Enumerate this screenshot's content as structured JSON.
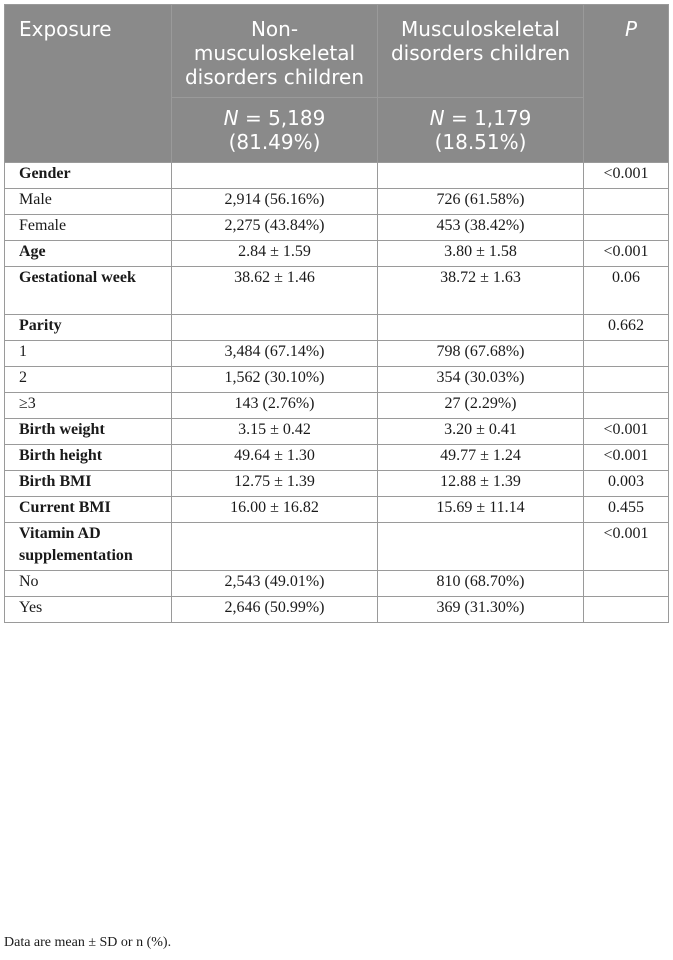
{
  "header": {
    "exposure": "Exposure",
    "group1": "Non-musculoskeletal disorders children",
    "group2": "Musculoskeletal disorders children",
    "p": "P",
    "n1_symbol": "N",
    "n1_value": " = 5,189",
    "n1_pct": "(81.49%)",
    "n2_symbol": "N",
    "n2_value": " = 1,179",
    "n2_pct": "(18.51%)"
  },
  "rows": [
    {
      "label": "Gender",
      "g1": "",
      "g2": "",
      "p": "<0.001"
    },
    {
      "label": "Male",
      "g1": "2,914 (56.16%)",
      "g2": "726 (61.58%)",
      "p": ""
    },
    {
      "label": "Female",
      "g1": "2,275 (43.84%)",
      "g2": "453 (38.42%)",
      "p": ""
    },
    {
      "label": "Age",
      "g1": "2.84 ± 1.59",
      "g2": "3.80 ± 1.58",
      "p": "<0.001"
    },
    {
      "label": "Gestational week",
      "g1": "38.62 ± 1.46",
      "g2": "38.72 ± 1.63",
      "p": "0.06"
    },
    {
      "label": "Parity",
      "g1": "",
      "g2": "",
      "p": "0.662"
    },
    {
      "label": "1",
      "g1": "3,484 (67.14%)",
      "g2": "798 (67.68%)",
      "p": ""
    },
    {
      "label": "2",
      "g1": "1,562 (30.10%)",
      "g2": "354 (30.03%)",
      "p": ""
    },
    {
      "label": "≥3",
      "g1": "143 (2.76%)",
      "g2": "27 (2.29%)",
      "p": ""
    },
    {
      "label": "Birth weight",
      "g1": "3.15 ± 0.42",
      "g2": "3.20 ± 0.41",
      "p": "<0.001"
    },
    {
      "label": "Birth height",
      "g1": "49.64 ± 1.30",
      "g2": "49.77 ± 1.24",
      "p": "<0.001"
    },
    {
      "label": "Birth BMI",
      "g1": "12.75 ± 1.39",
      "g2": "12.88 ± 1.39",
      "p": "0.003"
    },
    {
      "label": "Current BMI",
      "g1": "16.00 ± 16.82",
      "g2": "15.69 ± 11.14",
      "p": "0.455"
    },
    {
      "label": "Vitamin AD supplementation",
      "g1": "",
      "g2": "",
      "p": "<0.001"
    },
    {
      "label": "No",
      "g1": "2,543 (49.01%)",
      "g2": "810 (68.70%)",
      "p": ""
    },
    {
      "label": "Yes",
      "g1": "2,646 (50.99%)",
      "g2": "369 (31.30%)",
      "p": ""
    }
  ],
  "footnote": "Data are mean ± SD or n (%)."
}
